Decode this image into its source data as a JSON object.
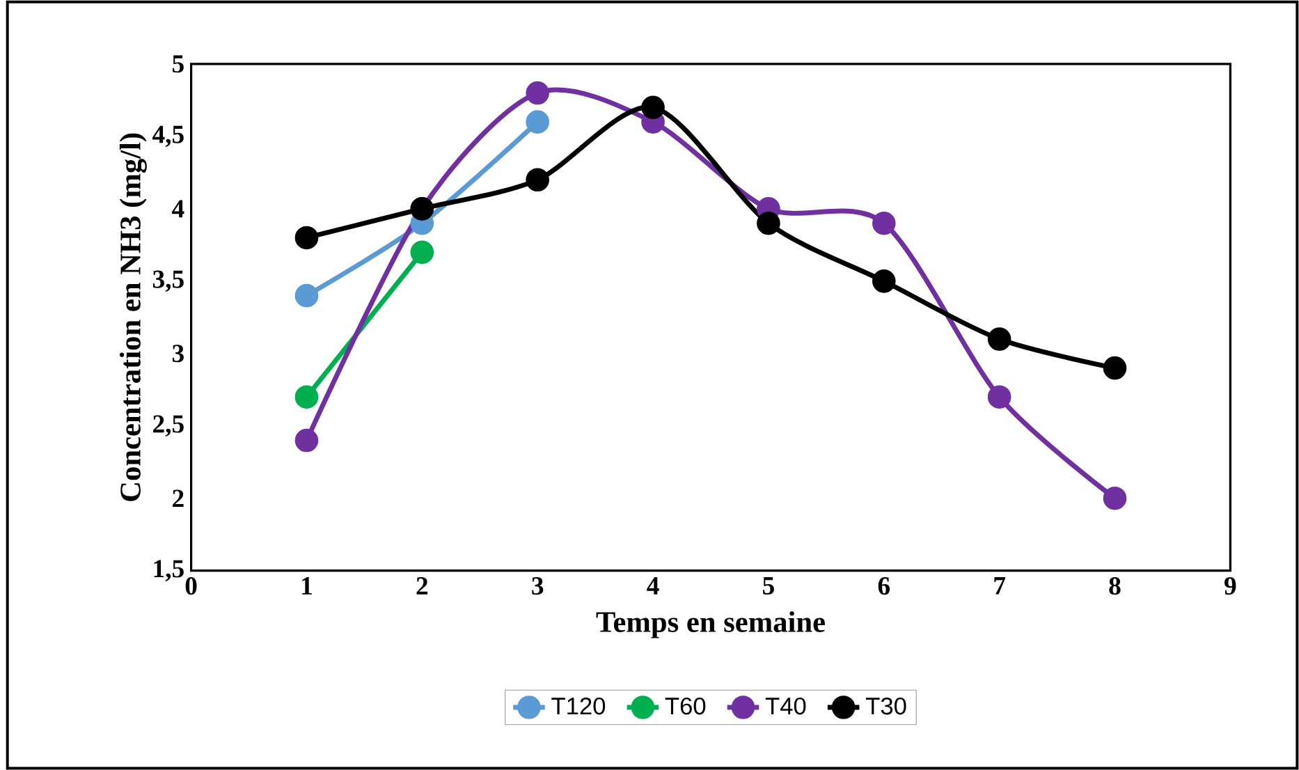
{
  "chart_data": {
    "type": "line",
    "xlabel": "Temps en semaine",
    "ylabel": "Concentration en NH3 (mg/l)",
    "xlim": [
      0,
      9
    ],
    "xticks": [
      0,
      1,
      2,
      3,
      4,
      5,
      6,
      7,
      8,
      9
    ],
    "ylim": [
      1.5,
      5
    ],
    "yticks": [
      {
        "value": 1.5,
        "label": "1,5"
      },
      {
        "value": 2,
        "label": "2"
      },
      {
        "value": 2.5,
        "label": "2,5"
      },
      {
        "value": 3,
        "label": "3"
      },
      {
        "value": 3.5,
        "label": "3,5"
      },
      {
        "value": 4,
        "label": "4"
      },
      {
        "value": 4.5,
        "label": "4,5"
      },
      {
        "value": 5,
        "label": "5"
      }
    ],
    "grid": false,
    "legend": "bottom",
    "marker": "circle",
    "line_style": "solid",
    "series": [
      {
        "name": "T120",
        "color": "#5b9bd5",
        "x": [
          1,
          2,
          3
        ],
        "values": [
          3.4,
          3.9,
          4.6
        ]
      },
      {
        "name": "T60",
        "color": "#00b050",
        "x": [
          1,
          2
        ],
        "values": [
          2.7,
          3.7
        ]
      },
      {
        "name": "T40",
        "color": "#7030a0",
        "x": [
          1,
          2,
          3,
          4,
          5,
          6,
          7,
          8
        ],
        "values": [
          2.4,
          4.0,
          4.8,
          4.6,
          4.0,
          3.9,
          2.7,
          2.0
        ]
      },
      {
        "name": "T30",
        "color": "#000000",
        "x": [
          1,
          2,
          3,
          4,
          5,
          6,
          7,
          8
        ],
        "values": [
          3.8,
          4.0,
          4.2,
          4.7,
          3.9,
          3.5,
          3.1,
          2.9
        ]
      }
    ]
  }
}
